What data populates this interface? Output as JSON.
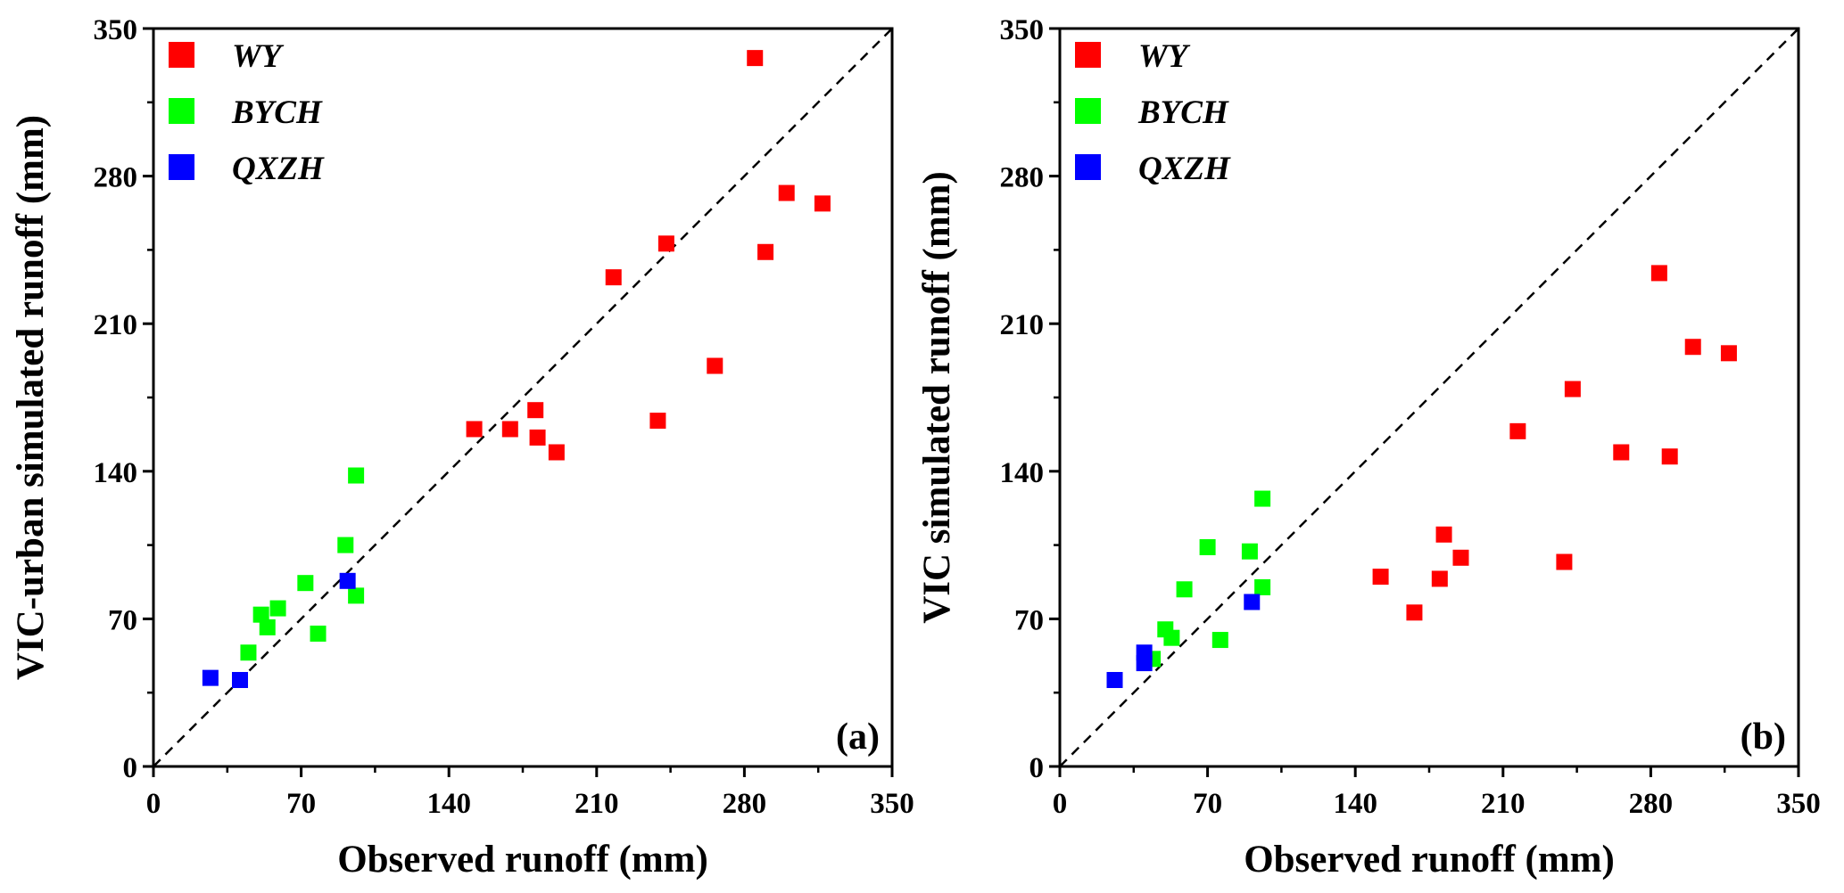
{
  "chart_data": [
    {
      "type": "scatter",
      "panel_label": "(a)",
      "xlabel": "Observed runoff (mm)",
      "ylabel": "VIC-urban simulated runoff (mm)",
      "xlim": [
        0,
        350
      ],
      "ylim": [
        0,
        350
      ],
      "xticks": [
        "0",
        "70",
        "140",
        "210",
        "280",
        "350"
      ],
      "yticks": [
        "0",
        "70",
        "140",
        "210",
        "280",
        "350"
      ],
      "reference_line": "1:1 dashed",
      "legend_position": "top-left",
      "series": [
        {
          "name": "WY",
          "color": "#ff0000",
          "points": [
            [
              285,
              336
            ],
            [
              218,
              232
            ],
            [
              243,
              248
            ],
            [
              300,
              272
            ],
            [
              317,
              267
            ],
            [
              290,
              244
            ],
            [
              266,
              190
            ],
            [
              239,
              164
            ],
            [
              152,
              160
            ],
            [
              169,
              160
            ],
            [
              181,
              169
            ],
            [
              182,
              156
            ],
            [
              191,
              149
            ]
          ]
        },
        {
          "name": "BYCH",
          "color": "#00ff00",
          "points": [
            [
              96,
              138
            ],
            [
              91,
              105
            ],
            [
              72,
              87
            ],
            [
              59,
              75
            ],
            [
              51,
              72
            ],
            [
              54,
              66
            ],
            [
              78,
              63
            ],
            [
              96,
              81
            ],
            [
              45,
              54
            ]
          ]
        },
        {
          "name": "QXZH",
          "color": "#0000ff",
          "points": [
            [
              92,
              88
            ],
            [
              27,
              42
            ],
            [
              41,
              41
            ]
          ]
        }
      ]
    },
    {
      "type": "scatter",
      "panel_label": "(b)",
      "xlabel": "Observed runoff (mm)",
      "ylabel": "VIC simulated runoff (mm)",
      "xlim": [
        0,
        350
      ],
      "ylim": [
        0,
        350
      ],
      "xticks": [
        "0",
        "70",
        "140",
        "210",
        "280",
        "350"
      ],
      "yticks": [
        "0",
        "70",
        "140",
        "210",
        "280",
        "350"
      ],
      "reference_line": "1:1 dashed",
      "legend_position": "top-left",
      "series": [
        {
          "name": "WY",
          "color": "#ff0000",
          "points": [
            [
              284,
              234
            ],
            [
              300,
              199
            ],
            [
              317,
              196
            ],
            [
              243,
              179
            ],
            [
              217,
              159
            ],
            [
              266,
              149
            ],
            [
              289,
              147
            ],
            [
              182,
              110
            ],
            [
              190,
              99
            ],
            [
              152,
              90
            ],
            [
              180,
              89
            ],
            [
              239,
              97
            ],
            [
              168,
              73
            ]
          ]
        },
        {
          "name": "BYCH",
          "color": "#00ff00",
          "points": [
            [
              96,
              127
            ],
            [
              70,
              104
            ],
            [
              90,
              102
            ],
            [
              59,
              84
            ],
            [
              96,
              85
            ],
            [
              50,
              65
            ],
            [
              53,
              61
            ],
            [
              76,
              60
            ],
            [
              44,
              51
            ]
          ]
        },
        {
          "name": "QXZH",
          "color": "#0000ff",
          "points": [
            [
              91,
              78
            ],
            [
              40,
              54
            ],
            [
              40,
              49
            ],
            [
              26,
              41
            ]
          ]
        }
      ]
    }
  ]
}
